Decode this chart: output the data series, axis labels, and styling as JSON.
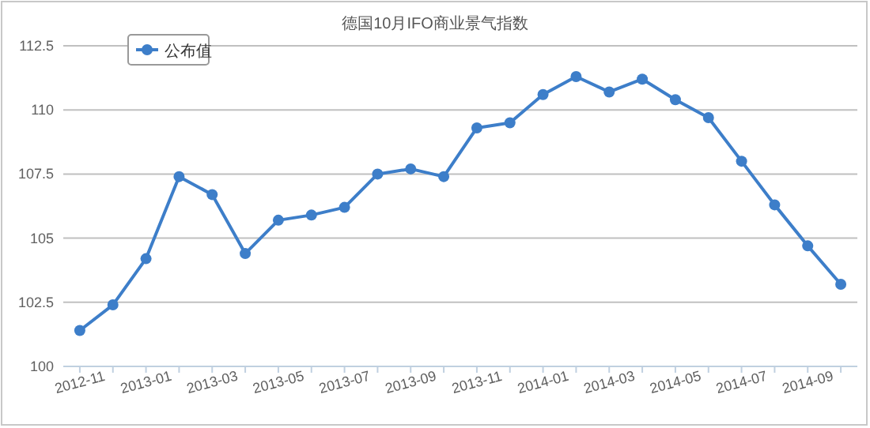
{
  "chart_data": {
    "type": "line",
    "title": "德国10月IFO商业景气指数",
    "categories": [
      "2012-11",
      null,
      "2013-01",
      null,
      "2013-03",
      null,
      "2013-05",
      null,
      "2013-07",
      null,
      "2013-09",
      null,
      "2013-11",
      null,
      "2014-01",
      null,
      "2014-03",
      null,
      "2014-05",
      null,
      "2014-07",
      null,
      "2014-09",
      null
    ],
    "series": [
      {
        "name": "公布值",
        "color": "#3d7ec9",
        "values": [
          101.4,
          102.4,
          104.2,
          107.4,
          106.7,
          104.4,
          105.7,
          105.9,
          106.2,
          107.5,
          107.7,
          107.4,
          109.3,
          109.5,
          110.6,
          111.3,
          110.7,
          111.2,
          110.4,
          109.7,
          108.0,
          106.3,
          104.7,
          103.2
        ]
      }
    ],
    "ylim": [
      100,
      112.5
    ],
    "yticks": [
      100,
      102.5,
      105,
      107.5,
      110,
      112.5
    ],
    "grid": "y",
    "legend": "top left",
    "marker": "circle"
  }
}
